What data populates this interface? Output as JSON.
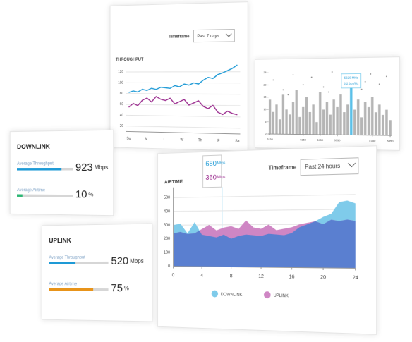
{
  "throughput_panel": {
    "timeframe_label": "Timeframe",
    "timeframe_value": "Past 7 days",
    "chart": {
      "type": "line",
      "title": "THROUGHPUT",
      "categories": [
        "Su",
        "M",
        "T",
        "W",
        "Th",
        "F",
        "Sa"
      ],
      "ylim": [
        10,
        130
      ],
      "yticks": [
        20,
        40,
        60,
        80,
        100,
        120
      ],
      "grid": true,
      "series": [
        {
          "color": "#1e9ad6",
          "values": [
            82,
            85,
            83,
            88,
            86,
            90,
            88,
            92,
            91,
            90,
            95,
            93,
            98,
            96,
            100,
            98,
            105,
            110,
            108,
            115,
            118,
            122,
            126,
            132
          ]
        },
        {
          "color": "#9b2c8f",
          "values": [
            55,
            62,
            58,
            68,
            72,
            65,
            75,
            70,
            68,
            72,
            62,
            66,
            70,
            60,
            64,
            68,
            58,
            54,
            60,
            48,
            44,
            50,
            46,
            44
          ]
        }
      ]
    }
  },
  "scatter_panel": {
    "chart": {
      "type": "bar",
      "tooltip": [
        "5620 MHz",
        "5.2 bps/Hz"
      ],
      "xlim": [
        5140,
        5860
      ],
      "xticks": [
        5150,
        5350,
        5450,
        5550,
        5750,
        5850
      ],
      "ylim": [
        0,
        27
      ],
      "yticks": [
        0,
        5,
        10,
        15,
        20,
        25
      ],
      "bar_color": "#b5b5b5",
      "highlight_color": "#5bc0e8",
      "highlight_x": 5630,
      "bars": {
        "x": [
          5150,
          5170,
          5190,
          5210,
          5230,
          5250,
          5270,
          5290,
          5310,
          5330,
          5350,
          5370,
          5390,
          5410,
          5430,
          5450,
          5470,
          5490,
          5510,
          5530,
          5550,
          5570,
          5590,
          5610,
          5630,
          5650,
          5670,
          5690,
          5710,
          5730,
          5750,
          5770,
          5790,
          5810,
          5830,
          5850
        ],
        "values": [
          14,
          9,
          12,
          6,
          16,
          10,
          8,
          13,
          18,
          7,
          11,
          15,
          9,
          12,
          5,
          17,
          10,
          13,
          8,
          14,
          11,
          16,
          9,
          12,
          19,
          10,
          14,
          7,
          13,
          11,
          15,
          9,
          12,
          8,
          10,
          6
        ]
      },
      "points": {
        "x": [
          5170,
          5230,
          5290,
          5350,
          5400,
          5470,
          5520,
          5580,
          5640,
          5690,
          5740,
          5790,
          5830,
          5260,
          5500,
          5710
        ],
        "values": [
          22,
          18,
          24,
          20,
          23,
          19,
          25,
          21,
          22,
          18,
          24,
          20,
          23,
          16,
          17,
          21
        ]
      }
    }
  },
  "downlink_card": {
    "title": "DOWNLINK",
    "throughput_label": "Average Throughput",
    "throughput": 923,
    "throughput_unit": "Mbps",
    "throughput_range": [
      0,
      1150
    ],
    "throughput_color": "#1e9ad6",
    "airtime_label": "Average Airtime",
    "airtime": 10,
    "airtime_unit": "%",
    "airtime_range": [
      0,
      100
    ],
    "airtime_color": "#2bb673"
  },
  "uplink_card": {
    "title": "UPLINK",
    "throughput_label": "Average Throughput",
    "throughput": 520,
    "throughput_unit": "Mbps",
    "throughput_range": [
      0,
      1150
    ],
    "throughput_color": "#1e9ad6",
    "airtime_label": "Average Airtime",
    "airtime": 75,
    "airtime_unit": "%",
    "airtime_range": [
      0,
      100
    ],
    "airtime_color": "#e8941a"
  },
  "airtime_panel": {
    "timeframe_label": "Timeframe",
    "timeframe_value": "Past 24 hours",
    "tooltip": [
      {
        "value": 680,
        "unit": "Mbps",
        "color": "#1e9ad6"
      },
      {
        "value": 360,
        "unit": "Mbps",
        "color": "#9b2c8f"
      }
    ],
    "chart": {
      "type": "area",
      "title": "AIRTIME",
      "x": [
        0,
        1,
        2,
        3,
        4,
        5,
        6,
        7,
        8,
        9,
        10,
        11,
        12,
        13,
        14,
        15,
        16,
        17,
        18,
        19,
        20,
        21,
        22,
        23,
        24
      ],
      "xlim": [
        0,
        24
      ],
      "xticks": [
        0,
        4,
        8,
        12,
        16,
        20,
        24
      ],
      "ylim": [
        0,
        550
      ],
      "yticks": [
        0,
        100,
        200,
        300,
        400,
        500
      ],
      "grid": true,
      "overlap_color": "#5a7fd0",
      "series": [
        {
          "name": "DOWNLINK",
          "color": "#7fcbea",
          "values": [
            300,
            310,
            240,
            320,
            230,
            220,
            210,
            230,
            200,
            220,
            230,
            225,
            220,
            235,
            230,
            225,
            240,
            280,
            300,
            320,
            350,
            370,
            450,
            460,
            440
          ]
        },
        {
          "name": "UPLINK",
          "color": "#cf86c4",
          "values": [
            240,
            250,
            235,
            240,
            270,
            300,
            260,
            280,
            290,
            270,
            330,
            280,
            270,
            300,
            260,
            270,
            280,
            300,
            310,
            320,
            300,
            330,
            320,
            330,
            320
          ]
        }
      ]
    }
  }
}
